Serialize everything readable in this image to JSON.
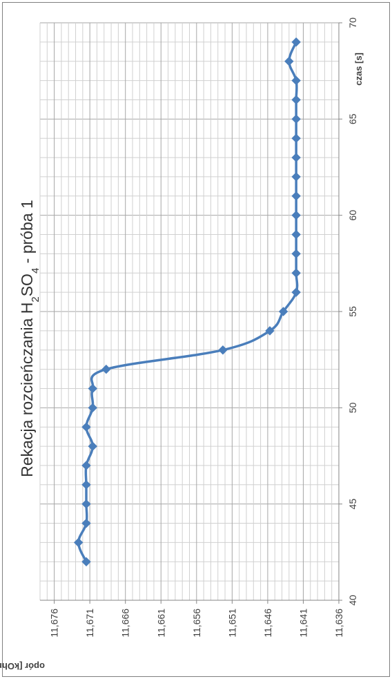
{
  "chart_data": {
    "type": "line",
    "title": {
      "prefix": "Rekacja rozcieńczania H",
      "sub1": "2",
      "mid": "SO",
      "sub2": "4",
      "suffix": " - próba 1"
    },
    "xlabel": "czas [s]",
    "ylabel": "opór [kOhm]",
    "xlim": [
      40,
      70
    ],
    "ylim": [
      11.636,
      11.678
    ],
    "x_major_ticks": [
      40,
      45,
      50,
      55,
      60,
      65,
      70
    ],
    "x_tick_labels": [
      "40",
      "45",
      "50",
      "55",
      "60",
      "65",
      "70"
    ],
    "y_major_ticks": [
      11.676,
      11.671,
      11.666,
      11.661,
      11.656,
      11.651,
      11.646,
      11.641,
      11.636
    ],
    "y_tick_labels": [
      "11,676",
      "11,671",
      "11,666",
      "11,661",
      "11,656",
      "11,651",
      "11,646",
      "11,641",
      "11,636"
    ],
    "reversed_y": true,
    "grid": true,
    "series": [
      {
        "color": "#4a7ebb",
        "marker": "diamond",
        "smooth": true,
        "x": [
          42,
          43,
          44,
          45,
          46,
          47,
          48,
          49,
          50,
          51,
          52,
          53,
          54,
          55,
          56,
          57,
          58,
          59,
          60,
          61,
          62,
          63,
          64,
          65,
          66,
          67,
          68,
          69
        ],
        "y": [
          11.6715,
          11.6726,
          11.6715,
          11.6715,
          11.6715,
          11.6715,
          11.6706,
          11.6715,
          11.6706,
          11.6706,
          11.6687,
          11.6523,
          11.6457,
          11.6438,
          11.642,
          11.642,
          11.642,
          11.642,
          11.642,
          11.642,
          11.642,
          11.642,
          11.642,
          11.642,
          11.642,
          11.642,
          11.643,
          11.642
        ]
      }
    ]
  }
}
